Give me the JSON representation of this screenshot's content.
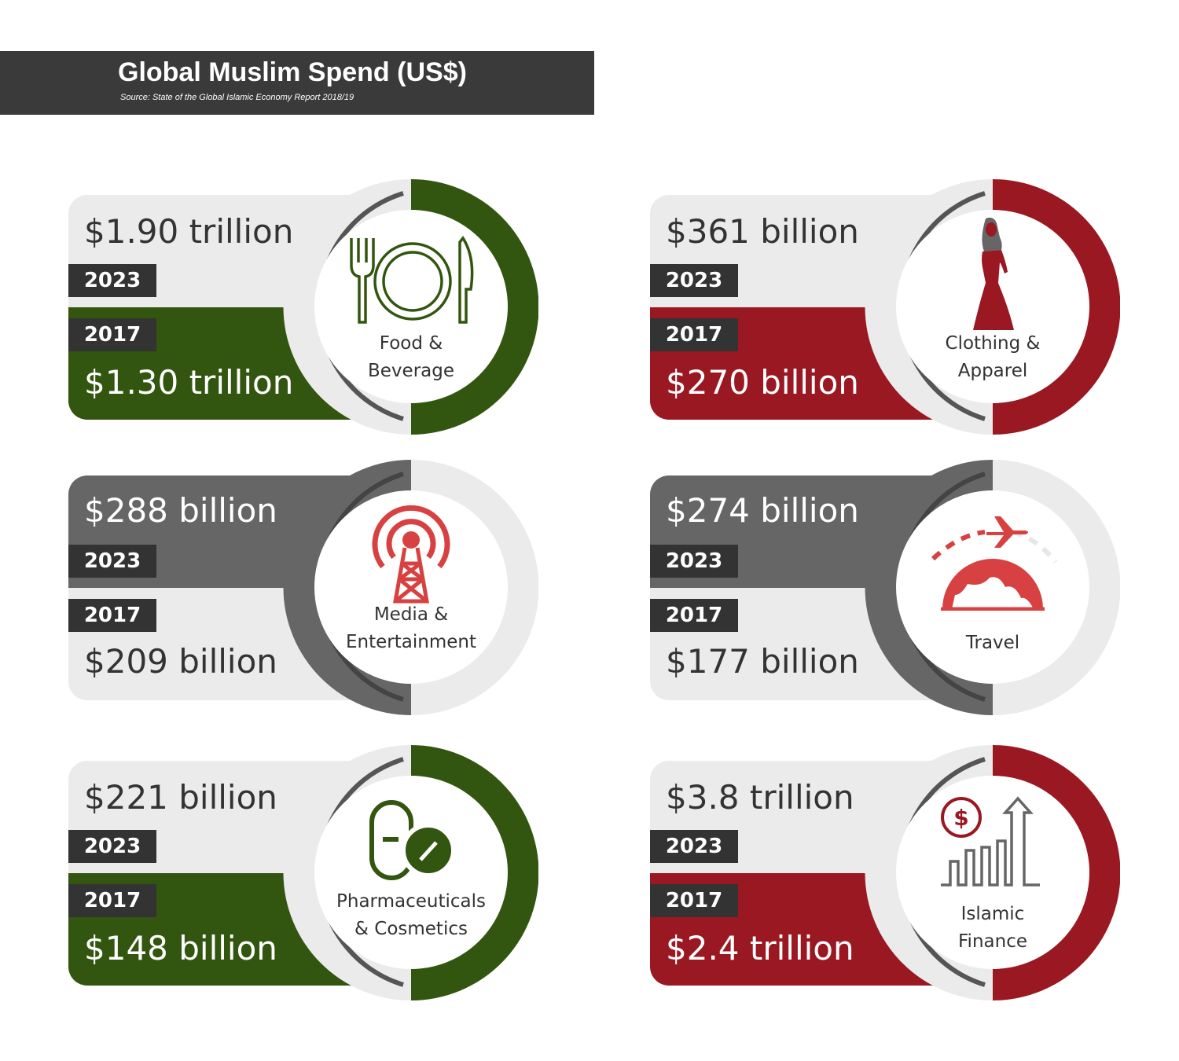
{
  "header": {
    "title": "Global Muslim Spend (US$)",
    "source": "Source: State of the Global Islamic Economy Report 2018/19"
  },
  "colors": {
    "green": "#32560f",
    "red": "#9a1822",
    "light_gray": "#ebebeb",
    "mid_gray": "#666666",
    "ring_edge": "#555555",
    "dark": "#333333",
    "media_icon_red": "#d84141"
  },
  "cards": [
    {
      "id": "food",
      "label_lines": [
        "Food &",
        "Beverage"
      ],
      "icon": "plate-fork-knife-icon",
      "year_2023": "2023",
      "year_2017": "2017",
      "value_2023": "$1.90 trillion",
      "value_2017": "$1.30 trillion",
      "theme": "green"
    },
    {
      "id": "clothing",
      "label_lines": [
        "Clothing &",
        "Apparel"
      ],
      "icon": "hijab-woman-icon",
      "year_2023": "2023",
      "year_2017": "2017",
      "value_2023": "$361 billion",
      "value_2017": "$270 billion",
      "theme": "red"
    },
    {
      "id": "media",
      "label_lines": [
        "Media &",
        "Entertainment"
      ],
      "icon": "broadcast-tower-icon",
      "year_2023": "2023",
      "year_2017": "2017",
      "value_2023": "$288 billion",
      "value_2017": "$209 billion",
      "theme": "gray"
    },
    {
      "id": "travel",
      "label_lines": [
        "Travel"
      ],
      "icon": "airplane-globe-icon",
      "year_2023": "2023",
      "year_2017": "2017",
      "value_2023": "$274 billion",
      "value_2017": "$177 billion",
      "theme": "gray"
    },
    {
      "id": "pharma",
      "label_lines": [
        "Pharmaceuticals",
        "& Cosmetics"
      ],
      "icon": "pill-capsule-icon",
      "year_2023": "2023",
      "year_2017": "2017",
      "value_2023": "$221 billion",
      "value_2017": "$148 billion",
      "theme": "green"
    },
    {
      "id": "finance",
      "label_lines": [
        "Islamic",
        "Finance"
      ],
      "icon": "dollar-growth-chart-icon",
      "year_2023": "2023",
      "year_2017": "2017",
      "value_2023": "$3.8 trillion",
      "value_2017": "$2.4 trillion",
      "theme": "red"
    }
  ]
}
